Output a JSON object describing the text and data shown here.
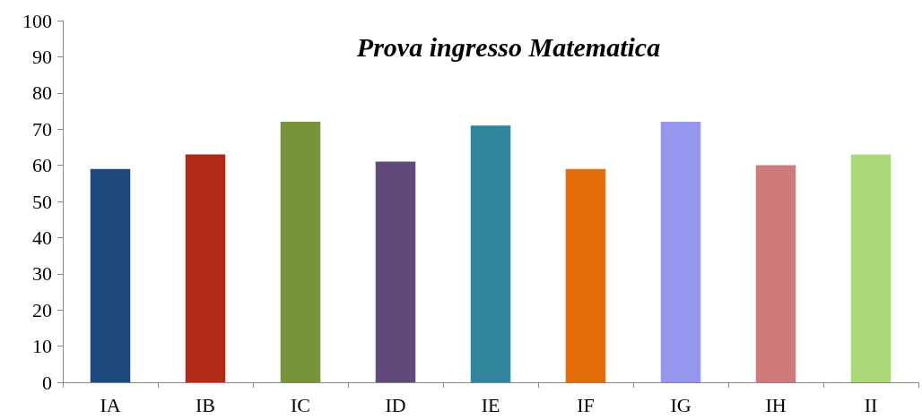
{
  "chart_data": {
    "type": "bar",
    "title": "Prova ingresso Matematica",
    "categories": [
      "IA",
      "IB",
      "IC",
      "ID",
      "IE",
      "IF",
      "IG",
      "IH",
      "II"
    ],
    "values": [
      59,
      63,
      72,
      61,
      71,
      59,
      72,
      60,
      63
    ],
    "colors": [
      "#1f497d",
      "#b02a16",
      "#77933c",
      "#604a7b",
      "#31859c",
      "#e46c0a",
      "#9597ee",
      "#d07b7b",
      "#add87a"
    ],
    "ylim": [
      0,
      100
    ],
    "yticks": [
      0,
      10,
      20,
      30,
      40,
      50,
      60,
      70,
      80,
      90,
      100
    ],
    "grid": false
  }
}
